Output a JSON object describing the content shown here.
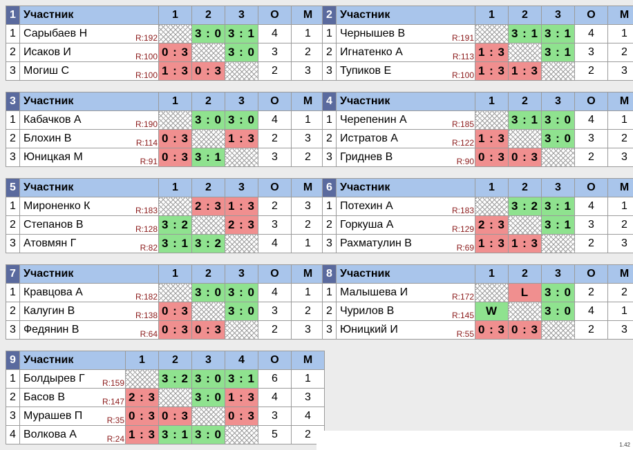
{
  "headers": {
    "participant": "Участник",
    "points": "О",
    "place": "М"
  },
  "groups": [
    {
      "num": "1",
      "rows": [
        {
          "idx": "1",
          "name": "Сарыбаев Н",
          "rating": "R:192",
          "results": [
            "",
            "3 : 0",
            "3 : 1"
          ],
          "points": "4",
          "place": "1"
        },
        {
          "idx": "2",
          "name": "Исаков И",
          "rating": "R:100",
          "results": [
            "0 : 3",
            "",
            "3 : 0"
          ],
          "points": "3",
          "place": "2"
        },
        {
          "idx": "3",
          "name": "Могиш С",
          "rating": "R:100",
          "results": [
            "1 : 3",
            "0 : 3",
            ""
          ],
          "points": "2",
          "place": "3"
        }
      ]
    },
    {
      "num": "2",
      "rows": [
        {
          "idx": "1",
          "name": "Чернышев В",
          "rating": "R:191",
          "results": [
            "",
            "3 : 1",
            "3 : 1"
          ],
          "points": "4",
          "place": "1"
        },
        {
          "idx": "2",
          "name": "Игнатенко А",
          "rating": "R:113",
          "results": [
            "1 : 3",
            "",
            "3 : 1"
          ],
          "points": "3",
          "place": "2"
        },
        {
          "idx": "3",
          "name": "Тупиков Е",
          "rating": "R:100",
          "results": [
            "1 : 3",
            "1 : 3",
            ""
          ],
          "points": "2",
          "place": "3"
        }
      ]
    },
    {
      "num": "3",
      "rows": [
        {
          "idx": "1",
          "name": "Кабачков А",
          "rating": "R:190",
          "results": [
            "",
            "3 : 0",
            "3 : 0"
          ],
          "points": "4",
          "place": "1"
        },
        {
          "idx": "2",
          "name": "Блохин В",
          "rating": "R:114",
          "results": [
            "0 : 3",
            "",
            "1 : 3"
          ],
          "points": "2",
          "place": "3"
        },
        {
          "idx": "3",
          "name": "Юницкая М",
          "rating": "R:91",
          "results": [
            "0 : 3",
            "3 : 1",
            ""
          ],
          "points": "3",
          "place": "2"
        }
      ]
    },
    {
      "num": "4",
      "rows": [
        {
          "idx": "1",
          "name": "Черепенин А",
          "rating": "R:185",
          "results": [
            "",
            "3 : 1",
            "3 : 0"
          ],
          "points": "4",
          "place": "1"
        },
        {
          "idx": "2",
          "name": "Истратов А",
          "rating": "R:122",
          "results": [
            "1 : 3",
            "",
            "3 : 0"
          ],
          "points": "3",
          "place": "2"
        },
        {
          "idx": "3",
          "name": "Гриднев В",
          "rating": "R:90",
          "results": [
            "0 : 3",
            "0 : 3",
            ""
          ],
          "points": "2",
          "place": "3"
        }
      ]
    },
    {
      "num": "5",
      "rows": [
        {
          "idx": "1",
          "name": "Мироненко К",
          "rating": "R:183",
          "results": [
            "",
            "2 : 3",
            "1 : 3"
          ],
          "points": "2",
          "place": "3"
        },
        {
          "idx": "2",
          "name": "Степанов В",
          "rating": "R:128",
          "results": [
            "3 : 2",
            "",
            "2 : 3"
          ],
          "points": "3",
          "place": "2"
        },
        {
          "idx": "3",
          "name": "Атовмян Г",
          "rating": "R:82",
          "results": [
            "3 : 1",
            "3 : 2",
            ""
          ],
          "points": "4",
          "place": "1"
        }
      ]
    },
    {
      "num": "6",
      "rows": [
        {
          "idx": "1",
          "name": "Потехин А",
          "rating": "R:183",
          "results": [
            "",
            "3 : 2",
            "3 : 1"
          ],
          "points": "4",
          "place": "1"
        },
        {
          "idx": "2",
          "name": "Горкуша А",
          "rating": "R:129",
          "results": [
            "2 : 3",
            "",
            "3 : 1"
          ],
          "points": "3",
          "place": "2"
        },
        {
          "idx": "3",
          "name": "Рахматулин В",
          "rating": "R:69",
          "results": [
            "1 : 3",
            "1 : 3",
            ""
          ],
          "points": "2",
          "place": "3"
        }
      ]
    },
    {
      "num": "7",
      "rows": [
        {
          "idx": "1",
          "name": "Кравцова А",
          "rating": "R:182",
          "results": [
            "",
            "3 : 0",
            "3 : 0"
          ],
          "points": "4",
          "place": "1"
        },
        {
          "idx": "2",
          "name": "Калугин В",
          "rating": "R:138",
          "results": [
            "0 : 3",
            "",
            "3 : 0"
          ],
          "points": "3",
          "place": "2"
        },
        {
          "idx": "3",
          "name": "Федянин В",
          "rating": "R:64",
          "results": [
            "0 : 3",
            "0 : 3",
            ""
          ],
          "points": "2",
          "place": "3"
        }
      ]
    },
    {
      "num": "8",
      "rows": [
        {
          "idx": "1",
          "name": "Малышева И",
          "rating": "R:172",
          "results": [
            "",
            "L",
            "3 : 0"
          ],
          "points": "2",
          "place": "2"
        },
        {
          "idx": "2",
          "name": "Чурилов В",
          "rating": "R:145",
          "results": [
            "W",
            "",
            "3 : 0"
          ],
          "points": "4",
          "place": "1"
        },
        {
          "idx": "3",
          "name": "Юницкий И",
          "rating": "R:55",
          "results": [
            "0 : 3",
            "0 : 3",
            ""
          ],
          "points": "2",
          "place": "3"
        }
      ]
    },
    {
      "num": "9",
      "rows": [
        {
          "idx": "1",
          "name": "Болдырев Г",
          "rating": "R:159",
          "results": [
            "",
            "3 : 2",
            "3 : 0",
            "3 : 1"
          ],
          "points": "6",
          "place": "1"
        },
        {
          "idx": "2",
          "name": "Басов В",
          "rating": "R:147",
          "results": [
            "2 : 3",
            "",
            "3 : 0",
            "1 : 3"
          ],
          "points": "4",
          "place": "3"
        },
        {
          "idx": "3",
          "name": "Мурашев П",
          "rating": "R:35",
          "results": [
            "0 : 3",
            "0 : 3",
            "",
            "0 : 3"
          ],
          "points": "3",
          "place": "4"
        },
        {
          "idx": "4",
          "name": "Волкова А",
          "rating": "R:24",
          "results": [
            "1 : 3",
            "3 : 1",
            "3 : 0",
            ""
          ],
          "points": "5",
          "place": "2"
        }
      ]
    }
  ],
  "footer": "1.42"
}
